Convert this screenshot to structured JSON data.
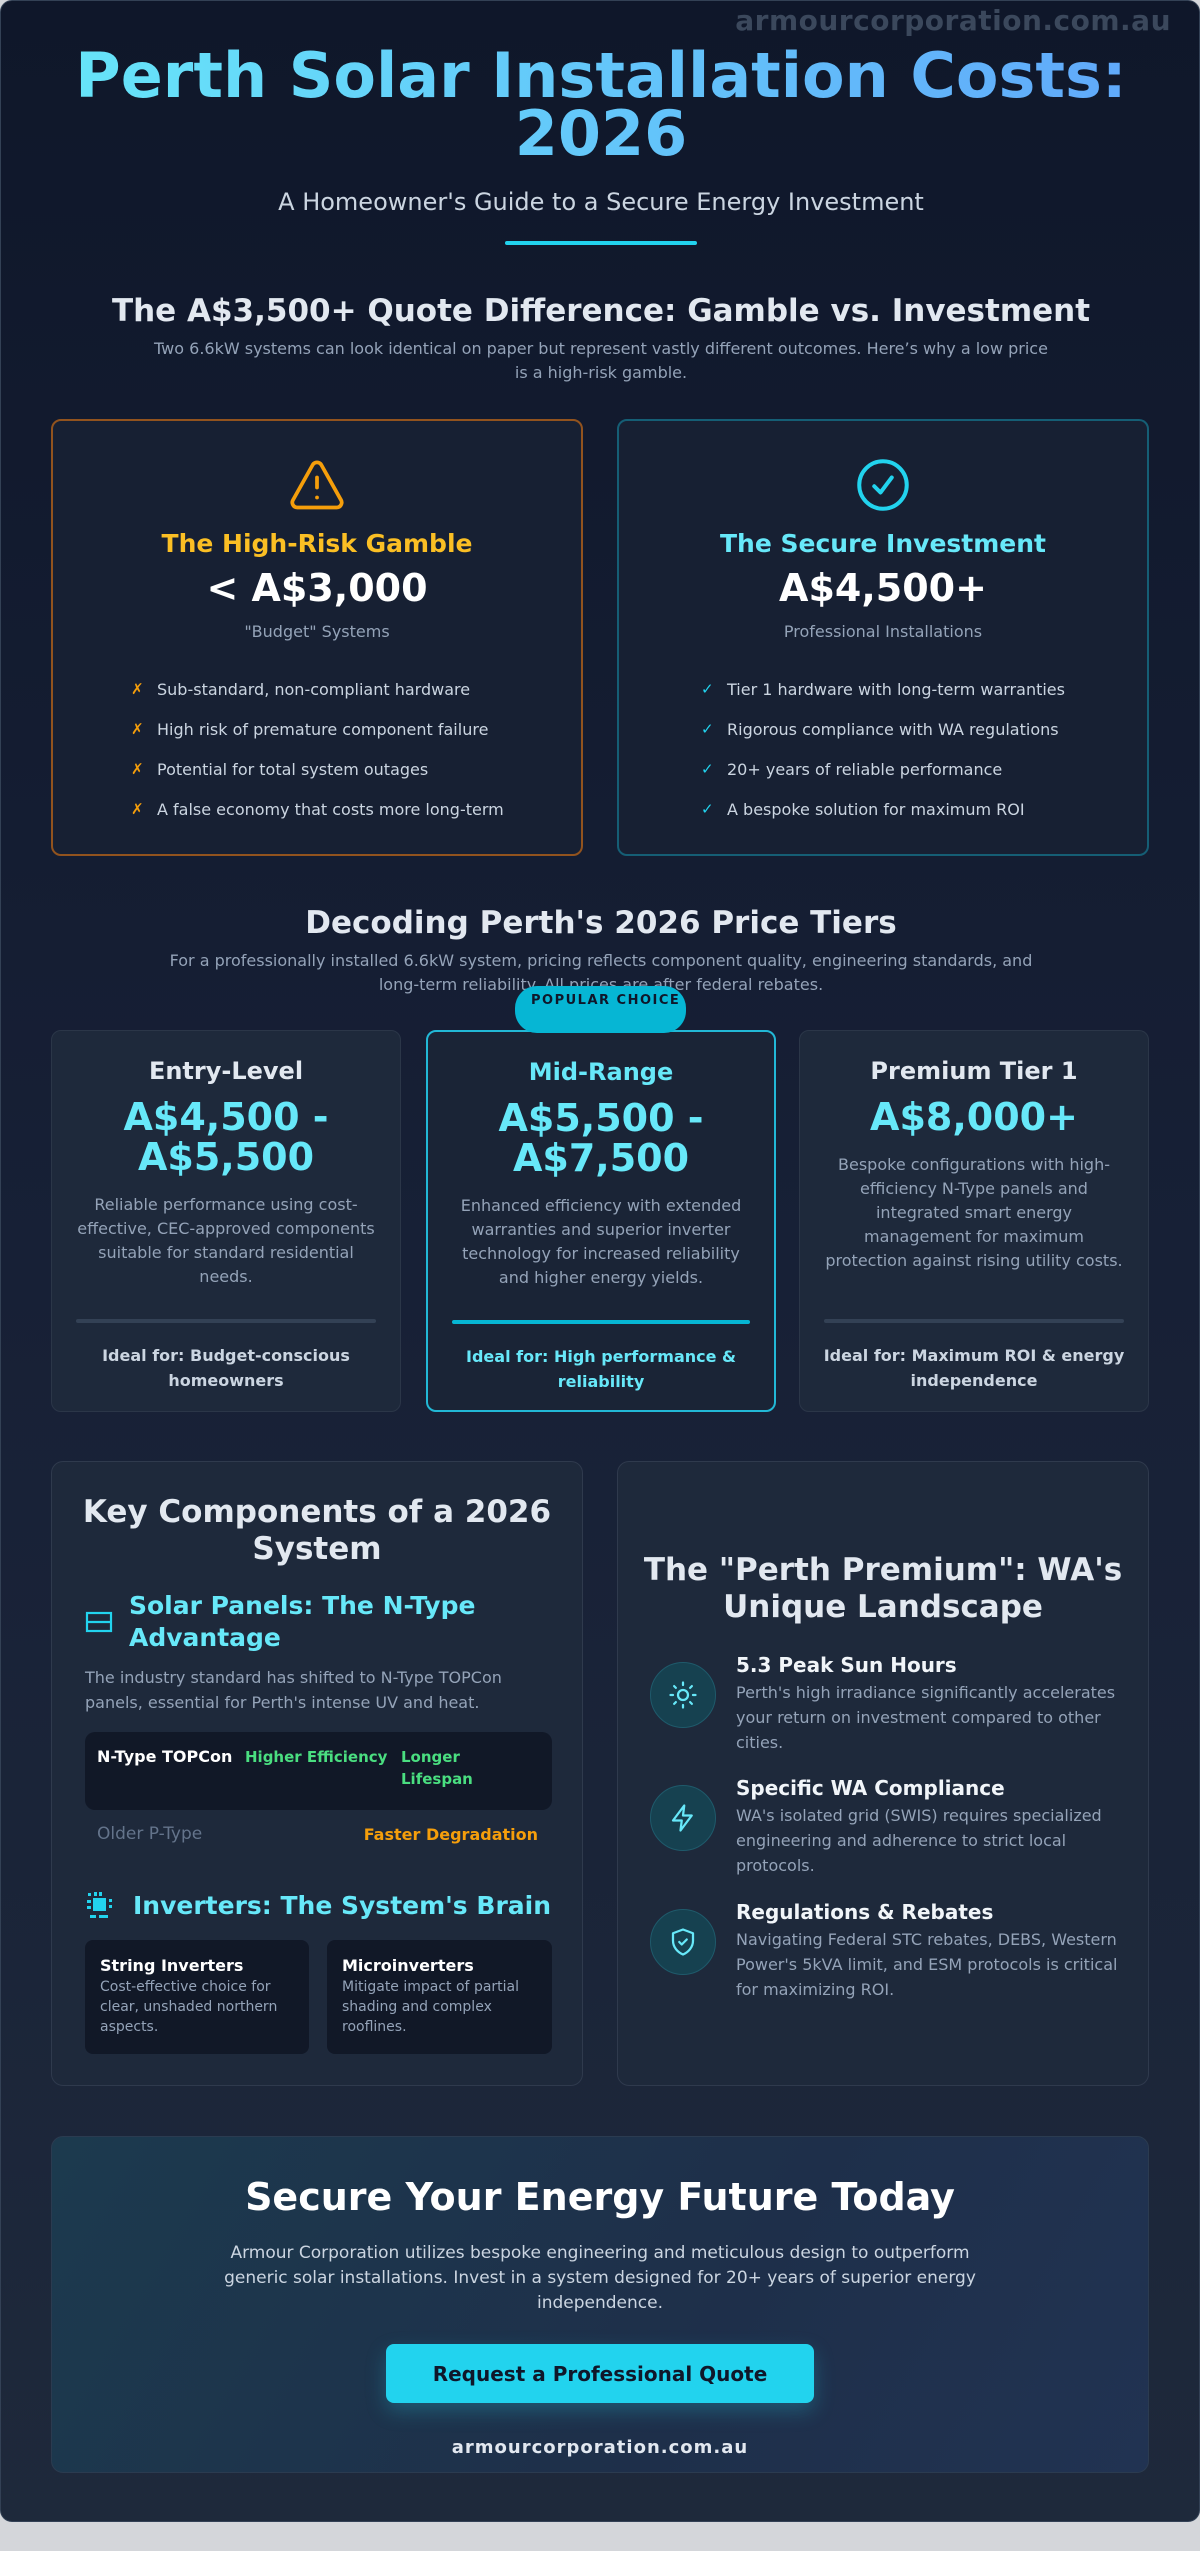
{
  "watermark": "armourcorporation.com.au",
  "header": {
    "title": "Perth Solar Installation Costs: 2026",
    "subtitle": "A Homeowner's Guide to a Secure Energy Investment"
  },
  "comparison": {
    "heading": "The A$3,500+ Quote Difference: Gamble vs. Investment",
    "lead": "Two 6.6kW systems can look identical on paper but represent vastly different outcomes. Here’s why a low price is a high-risk gamble.",
    "gamble": {
      "icon": "warning-triangle-icon",
      "title": "The High-Risk Gamble",
      "price": "< A$3,000",
      "subtitle": "\"Budget\" Systems",
      "marker": "✗",
      "items": [
        "Sub-standard, non-compliant hardware",
        "High risk of premature component failure",
        "Potential for total system outages",
        "A false economy that costs more long-term"
      ]
    },
    "secure": {
      "icon": "check-circle-icon",
      "title": "The Secure Investment",
      "price": "A$4,500+",
      "subtitle": "Professional Installations",
      "marker": "✓",
      "items": [
        "Tier 1 hardware with long-term warranties",
        "Rigorous compliance with WA regulations",
        "20+ years of reliable performance",
        "A bespoke solution for maximum ROI"
      ]
    }
  },
  "tiers": {
    "heading": "Decoding Perth's 2026 Price Tiers",
    "lead": "For a professionally installed 6.6kW system, pricing reflects component quality, engineering standards, and long-term reliability. All prices are after federal rebates.",
    "badge": "POPULAR CHOICE",
    "items": [
      {
        "name": "Entry-Level",
        "price": "A$4,500 - A$5,500",
        "description": "Reliable performance using cost-effective, CEC-approved components suitable for standard residential needs.",
        "ideal": "Ideal for: Budget-conscious homeowners"
      },
      {
        "name": "Mid-Range",
        "price": "A$5,500 - A$7,500",
        "description": "Enhanced efficiency with extended warranties and superior inverter technology for increased reliability and higher energy yields.",
        "ideal": "Ideal for: High performance & reliability"
      },
      {
        "name": "Premium Tier 1",
        "price": "A$8,000+",
        "description": "Bespoke configurations with high-efficiency N-Type panels and integrated smart energy management for maximum protection against rising utility costs.",
        "ideal": "Ideal for: Maximum ROI & energy independence"
      }
    ]
  },
  "components": {
    "heading": "Key Components of a 2026 System",
    "panels": {
      "title": "Solar Panels: The N-Type Advantage",
      "text": "The industry standard has shifted to N-Type TOPCon panels, essential for Perth's intense UV and heat.",
      "ntype": {
        "name": "N-Type TOPCon",
        "benefit1": "Higher Efficiency",
        "benefit2": "Longer Lifespan"
      },
      "ptype": {
        "name": "Older P-Type",
        "drawback": "Faster Degradation"
      }
    },
    "inverters": {
      "title": "Inverters: The System's Brain",
      "items": [
        {
          "name": "String Inverters",
          "text": "Cost-effective choice for clear, unshaded northern aspects."
        },
        {
          "name": "Microinverters",
          "text": "Mitigate impact of partial shading and complex rooflines."
        }
      ]
    }
  },
  "premium": {
    "heading": "The \"Perth Premium\": WA's Unique Landscape",
    "items": [
      {
        "icon": "sun-icon",
        "title": "5.3 Peak Sun Hours",
        "text": "Perth's high irradiance significantly accelerates your return on investment compared to other cities."
      },
      {
        "icon": "lightning-icon",
        "title": "Specific WA Compliance",
        "text": "WA's isolated grid (SWIS) requires specialized engineering and adherence to strict local protocols."
      },
      {
        "icon": "shield-check-icon",
        "title": "Regulations & Rebates",
        "text": "Navigating Federal STC rebates, DEBS, Western Power's 5kVA limit, and ESM protocols is critical for maximizing ROI."
      }
    ]
  },
  "cta": {
    "title": "Secure Your Energy Future Today",
    "text": "Armour Corporation utilizes bespoke engineering and meticulous design to outperform generic solar installations. Invest in a system designed for 20+ years of superior energy independence.",
    "button": "Request a Professional Quote",
    "link": "armourcorporation.com.au"
  },
  "colors": {
    "accent": "#22d3ee",
    "warning": "#f59e0b",
    "success": "#4ade80",
    "background": "#0f172a"
  }
}
